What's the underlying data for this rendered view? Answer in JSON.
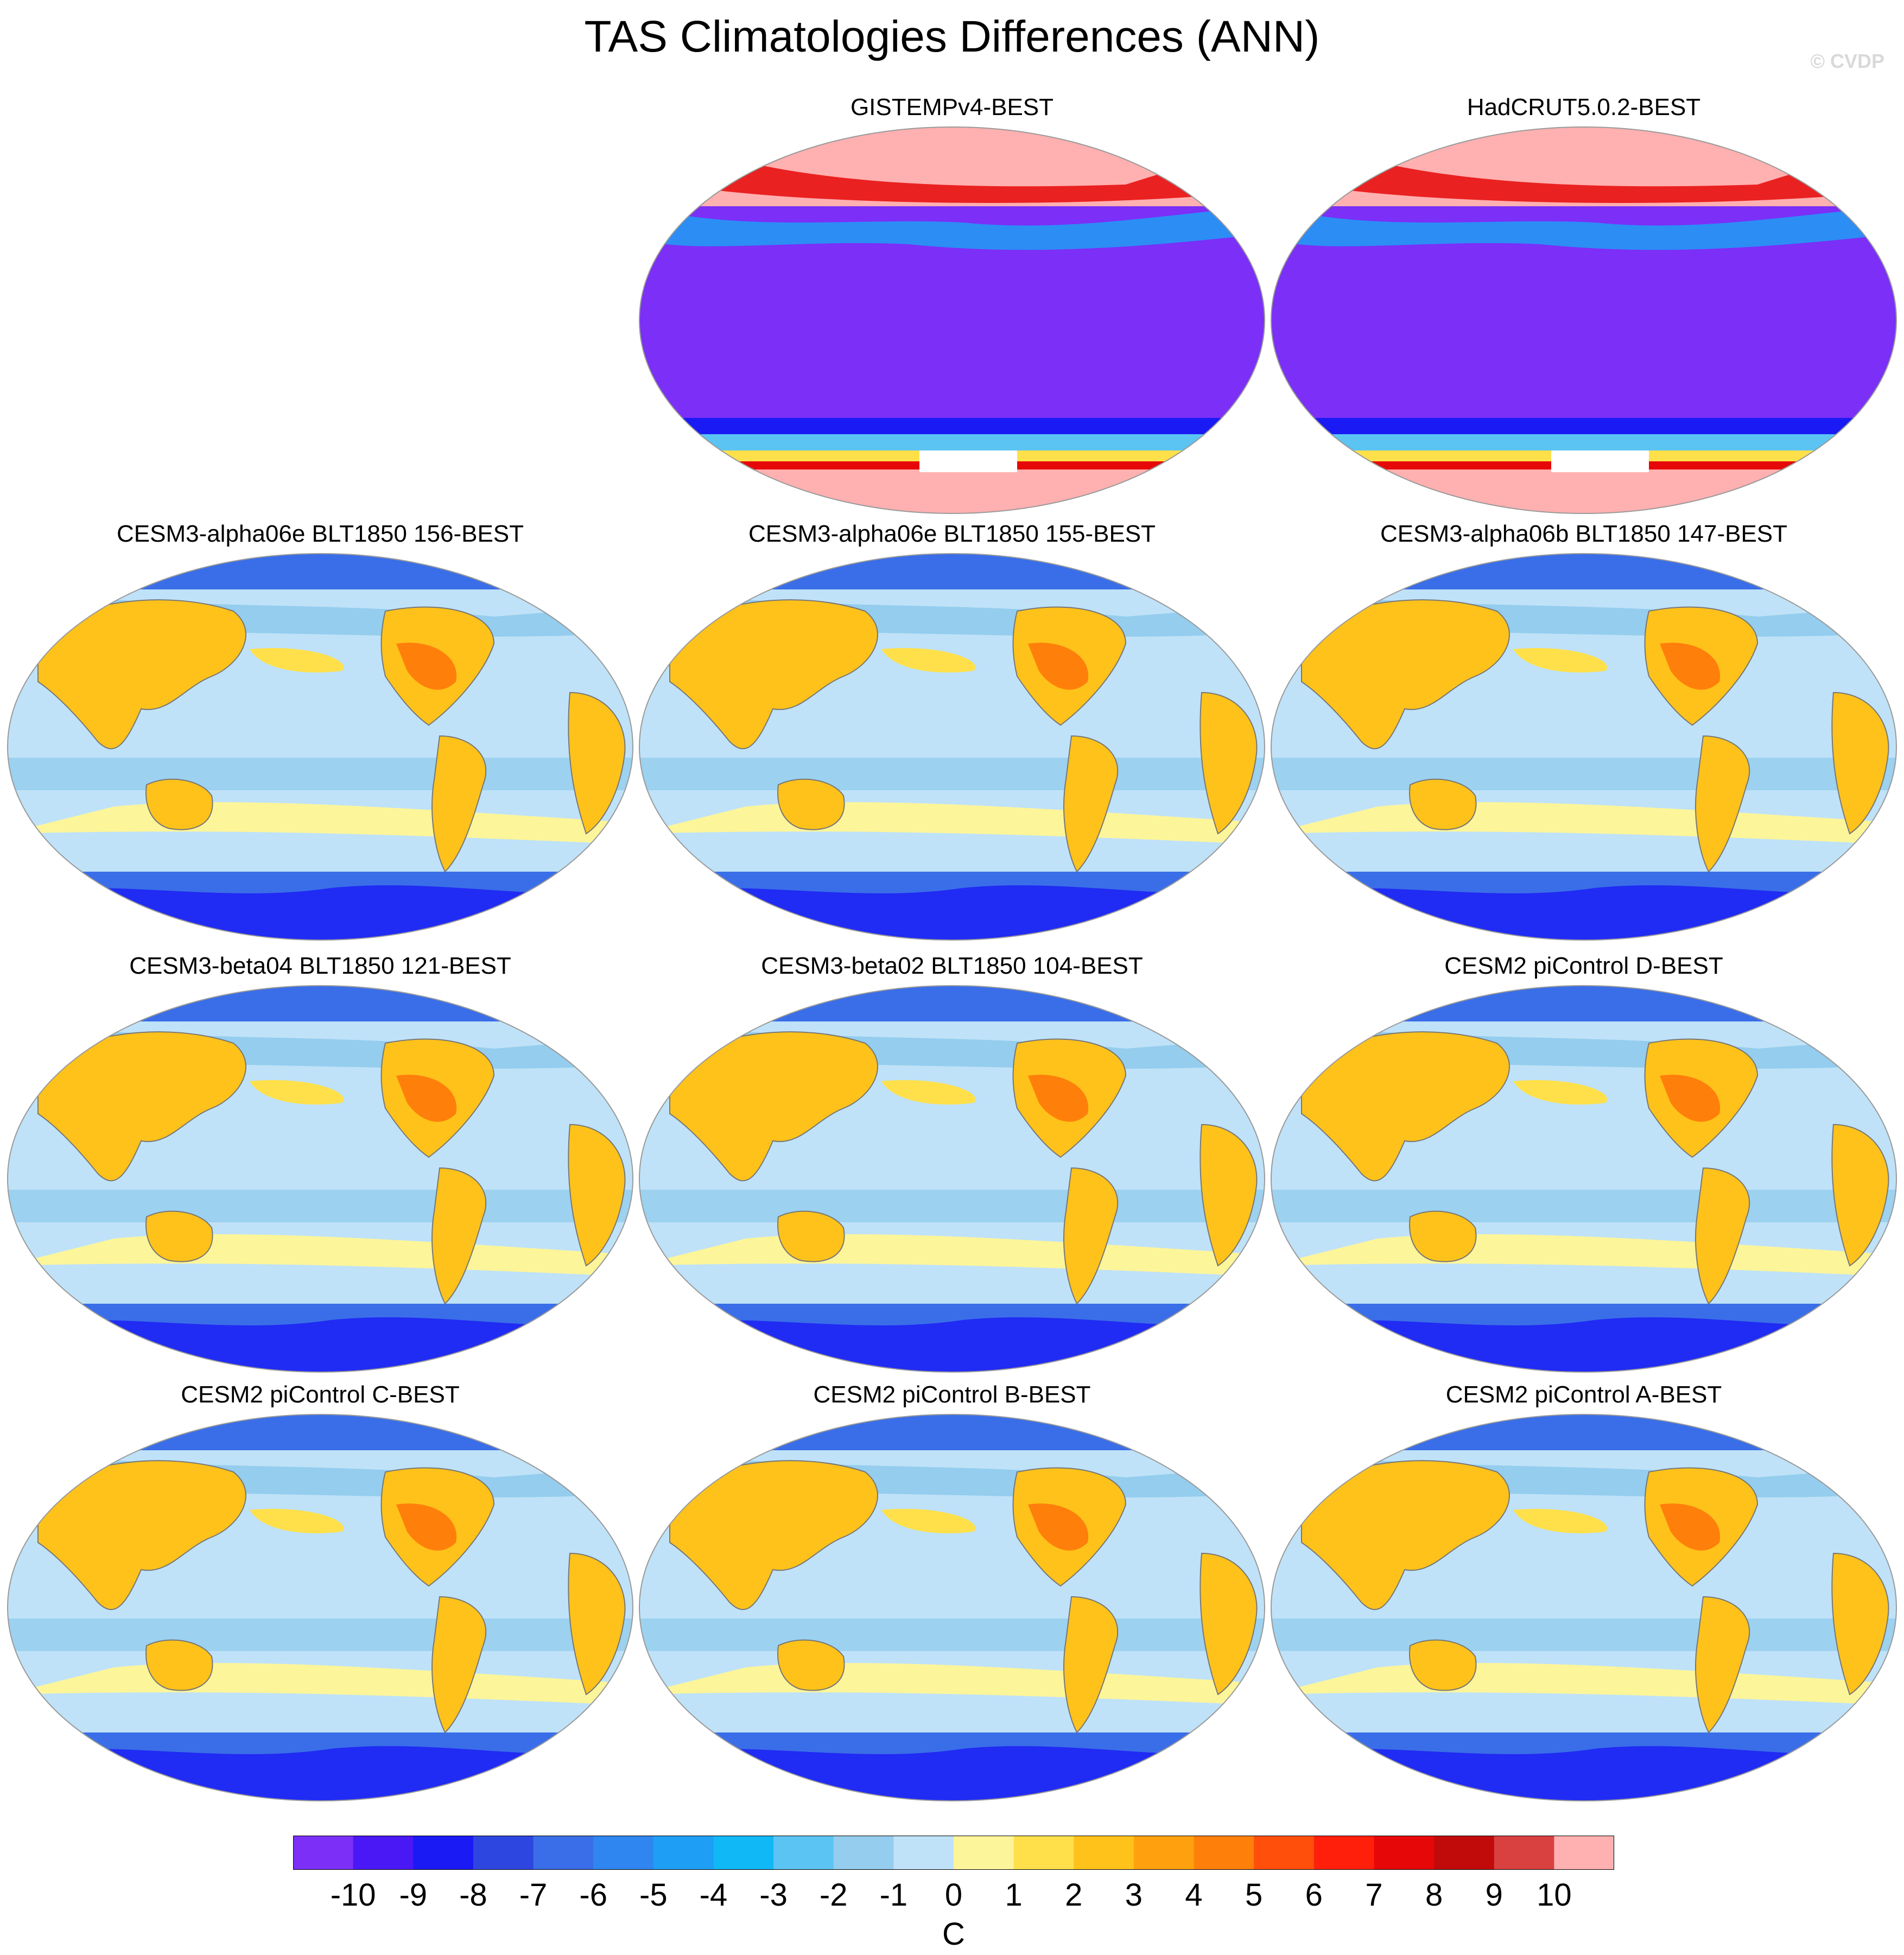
{
  "title": "TAS Climatologies Differences (ANN)",
  "copyright": "© CVDP",
  "panels": [
    {
      "title": "GISTEMPv4-BEST",
      "style": "obs"
    },
    {
      "title": "HadCRUT5.0.2-BEST",
      "style": "obs"
    },
    {
      "title": "CESM3-alpha06e BLT1850 156-BEST",
      "style": "model"
    },
    {
      "title": "CESM3-alpha06e BLT1850 155-BEST",
      "style": "model"
    },
    {
      "title": "CESM3-alpha06b BLT1850 147-BEST",
      "style": "model"
    },
    {
      "title": "CESM3-beta04 BLT1850 121-BEST",
      "style": "model"
    },
    {
      "title": "CESM3-beta02 BLT1850 104-BEST",
      "style": "model"
    },
    {
      "title": "CESM2 piControl D-BEST",
      "style": "model"
    },
    {
      "title": "CESM2 piControl C-BEST",
      "style": "model"
    },
    {
      "title": "CESM2 piControl B-BEST",
      "style": "model"
    },
    {
      "title": "CESM2 piControl A-BEST",
      "style": "model"
    }
  ],
  "colorbar": {
    "colors": [
      "#7b2ff7",
      "#4a18f5",
      "#1a1af5",
      "#2e46e0",
      "#3a6ee8",
      "#2f86f0",
      "#1e9ef5",
      "#10b8f5",
      "#5cc4f2",
      "#94cdee",
      "#bfe2f8",
      "#fdf59a",
      "#ffe04a",
      "#ffc21a",
      "#ffa10e",
      "#ff7f0b",
      "#ff4f0b",
      "#ff1f0b",
      "#e60808",
      "#c10a0a",
      "#d94040",
      "#ffb0b0"
    ],
    "tick_labels": [
      "-10",
      "-9",
      "-8",
      "-7",
      "-6",
      "-5",
      "-4",
      "-3",
      "-2",
      "-1",
      "0",
      "1",
      "2",
      "3",
      "4",
      "5",
      "6",
      "7",
      "8",
      "9",
      "10"
    ],
    "units": "C"
  }
}
